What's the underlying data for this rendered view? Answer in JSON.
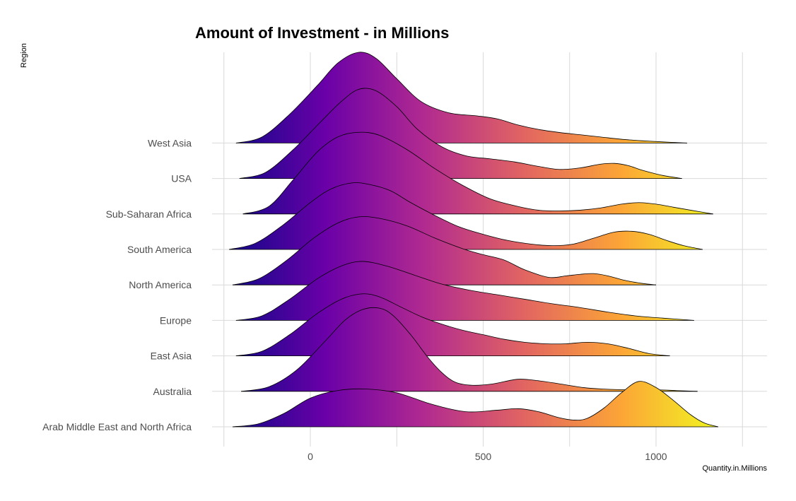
{
  "chart_data": {
    "type": "ridgeline",
    "title": "Amount of Investment - in Millions",
    "xlabel": "Quantity.in.Millions",
    "ylabel": "Region",
    "xlim": [
      -250,
      1320
    ],
    "x_ticks": [
      0,
      500,
      1000
    ],
    "grid": true,
    "color_scale": "plasma (fill by x value)",
    "colors": [
      "#0d0887",
      "#6a00a8",
      "#b12a90",
      "#e16462",
      "#fca636",
      "#f0f921"
    ],
    "categories": [
      "Arab Middle East and North Africa",
      "Australia",
      "East Asia",
      "Europe",
      "North America",
      "South America",
      "Sub-Saharan Africa",
      "USA",
      "West Asia"
    ],
    "series": [
      {
        "name": "Arab Middle East and North Africa",
        "range": [
          -225,
          1180
        ],
        "x": [
          -225,
          -150,
          -75,
          0,
          80,
          160,
          250,
          350,
          450,
          540,
          600,
          660,
          720,
          760,
          800,
          850,
          900,
          950,
          1000,
          1050,
          1100,
          1140,
          1180
        ],
        "y": [
          0,
          0.04,
          0.18,
          0.38,
          0.48,
          0.5,
          0.45,
          0.3,
          0.2,
          0.22,
          0.24,
          0.2,
          0.12,
          0.09,
          0.11,
          0.25,
          0.45,
          0.6,
          0.52,
          0.35,
          0.16,
          0.05,
          0
        ]
      },
      {
        "name": "Australia",
        "range": [
          -200,
          1120
        ],
        "x": [
          -200,
          -120,
          -40,
          40,
          100,
          150,
          200,
          240,
          290,
          340,
          380,
          420,
          470,
          530,
          600,
          660,
          720,
          790,
          850,
          920,
          1000,
          1060,
          1120
        ],
        "y": [
          0,
          0.06,
          0.28,
          0.65,
          0.94,
          1.08,
          1.1,
          1.0,
          0.75,
          0.45,
          0.25,
          0.12,
          0.08,
          0.1,
          0.16,
          0.14,
          0.1,
          0.05,
          0.03,
          0.02,
          0.02,
          0.01,
          0
        ]
      },
      {
        "name": "East Asia",
        "range": [
          -215,
          1040
        ],
        "x": [
          -215,
          -140,
          -60,
          20,
          90,
          150,
          200,
          260,
          320,
          380,
          440,
          500,
          560,
          620,
          680,
          740,
          800,
          860,
          920,
          980,
          1040
        ],
        "y": [
          0,
          0.06,
          0.28,
          0.56,
          0.75,
          0.82,
          0.78,
          0.65,
          0.52,
          0.42,
          0.34,
          0.28,
          0.22,
          0.18,
          0.16,
          0.16,
          0.18,
          0.16,
          0.1,
          0.03,
          0
        ]
      },
      {
        "name": "Europe",
        "range": [
          -215,
          1110
        ],
        "x": [
          -215,
          -140,
          -60,
          20,
          90,
          150,
          220,
          300,
          380,
          460,
          540,
          620,
          700,
          780,
          860,
          940,
          1020,
          1110
        ],
        "y": [
          0,
          0.06,
          0.28,
          0.55,
          0.72,
          0.78,
          0.72,
          0.6,
          0.48,
          0.4,
          0.34,
          0.28,
          0.22,
          0.17,
          0.11,
          0.06,
          0.03,
          0
        ]
      },
      {
        "name": "North America",
        "range": [
          -225,
          1000
        ],
        "x": [
          -225,
          -150,
          -70,
          10,
          80,
          140,
          200,
          280,
          360,
          440,
          500,
          560,
          620,
          690,
          740,
          780,
          820,
          860,
          910,
          960,
          1000
        ],
        "y": [
          0,
          0.08,
          0.32,
          0.62,
          0.82,
          0.9,
          0.88,
          0.78,
          0.62,
          0.48,
          0.4,
          0.33,
          0.2,
          0.1,
          0.12,
          0.14,
          0.15,
          0.12,
          0.06,
          0.02,
          0
        ]
      },
      {
        "name": "South America",
        "range": [
          -235,
          1135
        ],
        "x": [
          -235,
          -160,
          -80,
          0,
          60,
          120,
          170,
          230,
          290,
          360,
          430,
          500,
          570,
          640,
          700,
          760,
          820,
          880,
          930,
          980,
          1030,
          1080,
          1135
        ],
        "y": [
          0,
          0.08,
          0.32,
          0.62,
          0.8,
          0.88,
          0.86,
          0.78,
          0.62,
          0.45,
          0.3,
          0.2,
          0.12,
          0.07,
          0.05,
          0.07,
          0.15,
          0.23,
          0.24,
          0.2,
          0.12,
          0.05,
          0
        ]
      },
      {
        "name": "Sub-Saharan Africa",
        "range": [
          -195,
          1165
        ],
        "x": [
          -195,
          -120,
          -50,
          20,
          80,
          140,
          200,
          280,
          360,
          440,
          520,
          600,
          660,
          720,
          780,
          840,
          900,
          950,
          1000,
          1050,
          1100,
          1165
        ],
        "y": [
          0,
          0.1,
          0.45,
          0.82,
          1.02,
          1.08,
          1.04,
          0.85,
          0.6,
          0.38,
          0.2,
          0.1,
          0.05,
          0.04,
          0.05,
          0.08,
          0.13,
          0.15,
          0.13,
          0.09,
          0.05,
          0
        ]
      },
      {
        "name": "USA",
        "range": [
          -205,
          1075
        ],
        "x": [
          -205,
          -130,
          -50,
          30,
          90,
          140,
          190,
          250,
          310,
          380,
          450,
          520,
          590,
          660,
          720,
          780,
          840,
          880,
          920,
          960,
          1020,
          1075
        ],
        "y": [
          0,
          0.08,
          0.38,
          0.75,
          1.02,
          1.18,
          1.16,
          0.95,
          0.65,
          0.42,
          0.3,
          0.26,
          0.22,
          0.16,
          0.12,
          0.14,
          0.19,
          0.2,
          0.17,
          0.11,
          0.04,
          0
        ]
      },
      {
        "name": "West Asia",
        "range": [
          -215,
          1090
        ],
        "x": [
          -215,
          -140,
          -60,
          20,
          80,
          140,
          190,
          250,
          320,
          400,
          480,
          540,
          600,
          660,
          720,
          780,
          840,
          900,
          960,
          1020,
          1090
        ],
        "y": [
          0,
          0.08,
          0.38,
          0.76,
          1.06,
          1.2,
          1.12,
          0.85,
          0.55,
          0.4,
          0.36,
          0.32,
          0.24,
          0.18,
          0.14,
          0.11,
          0.08,
          0.05,
          0.03,
          0.015,
          0
        ]
      }
    ]
  }
}
